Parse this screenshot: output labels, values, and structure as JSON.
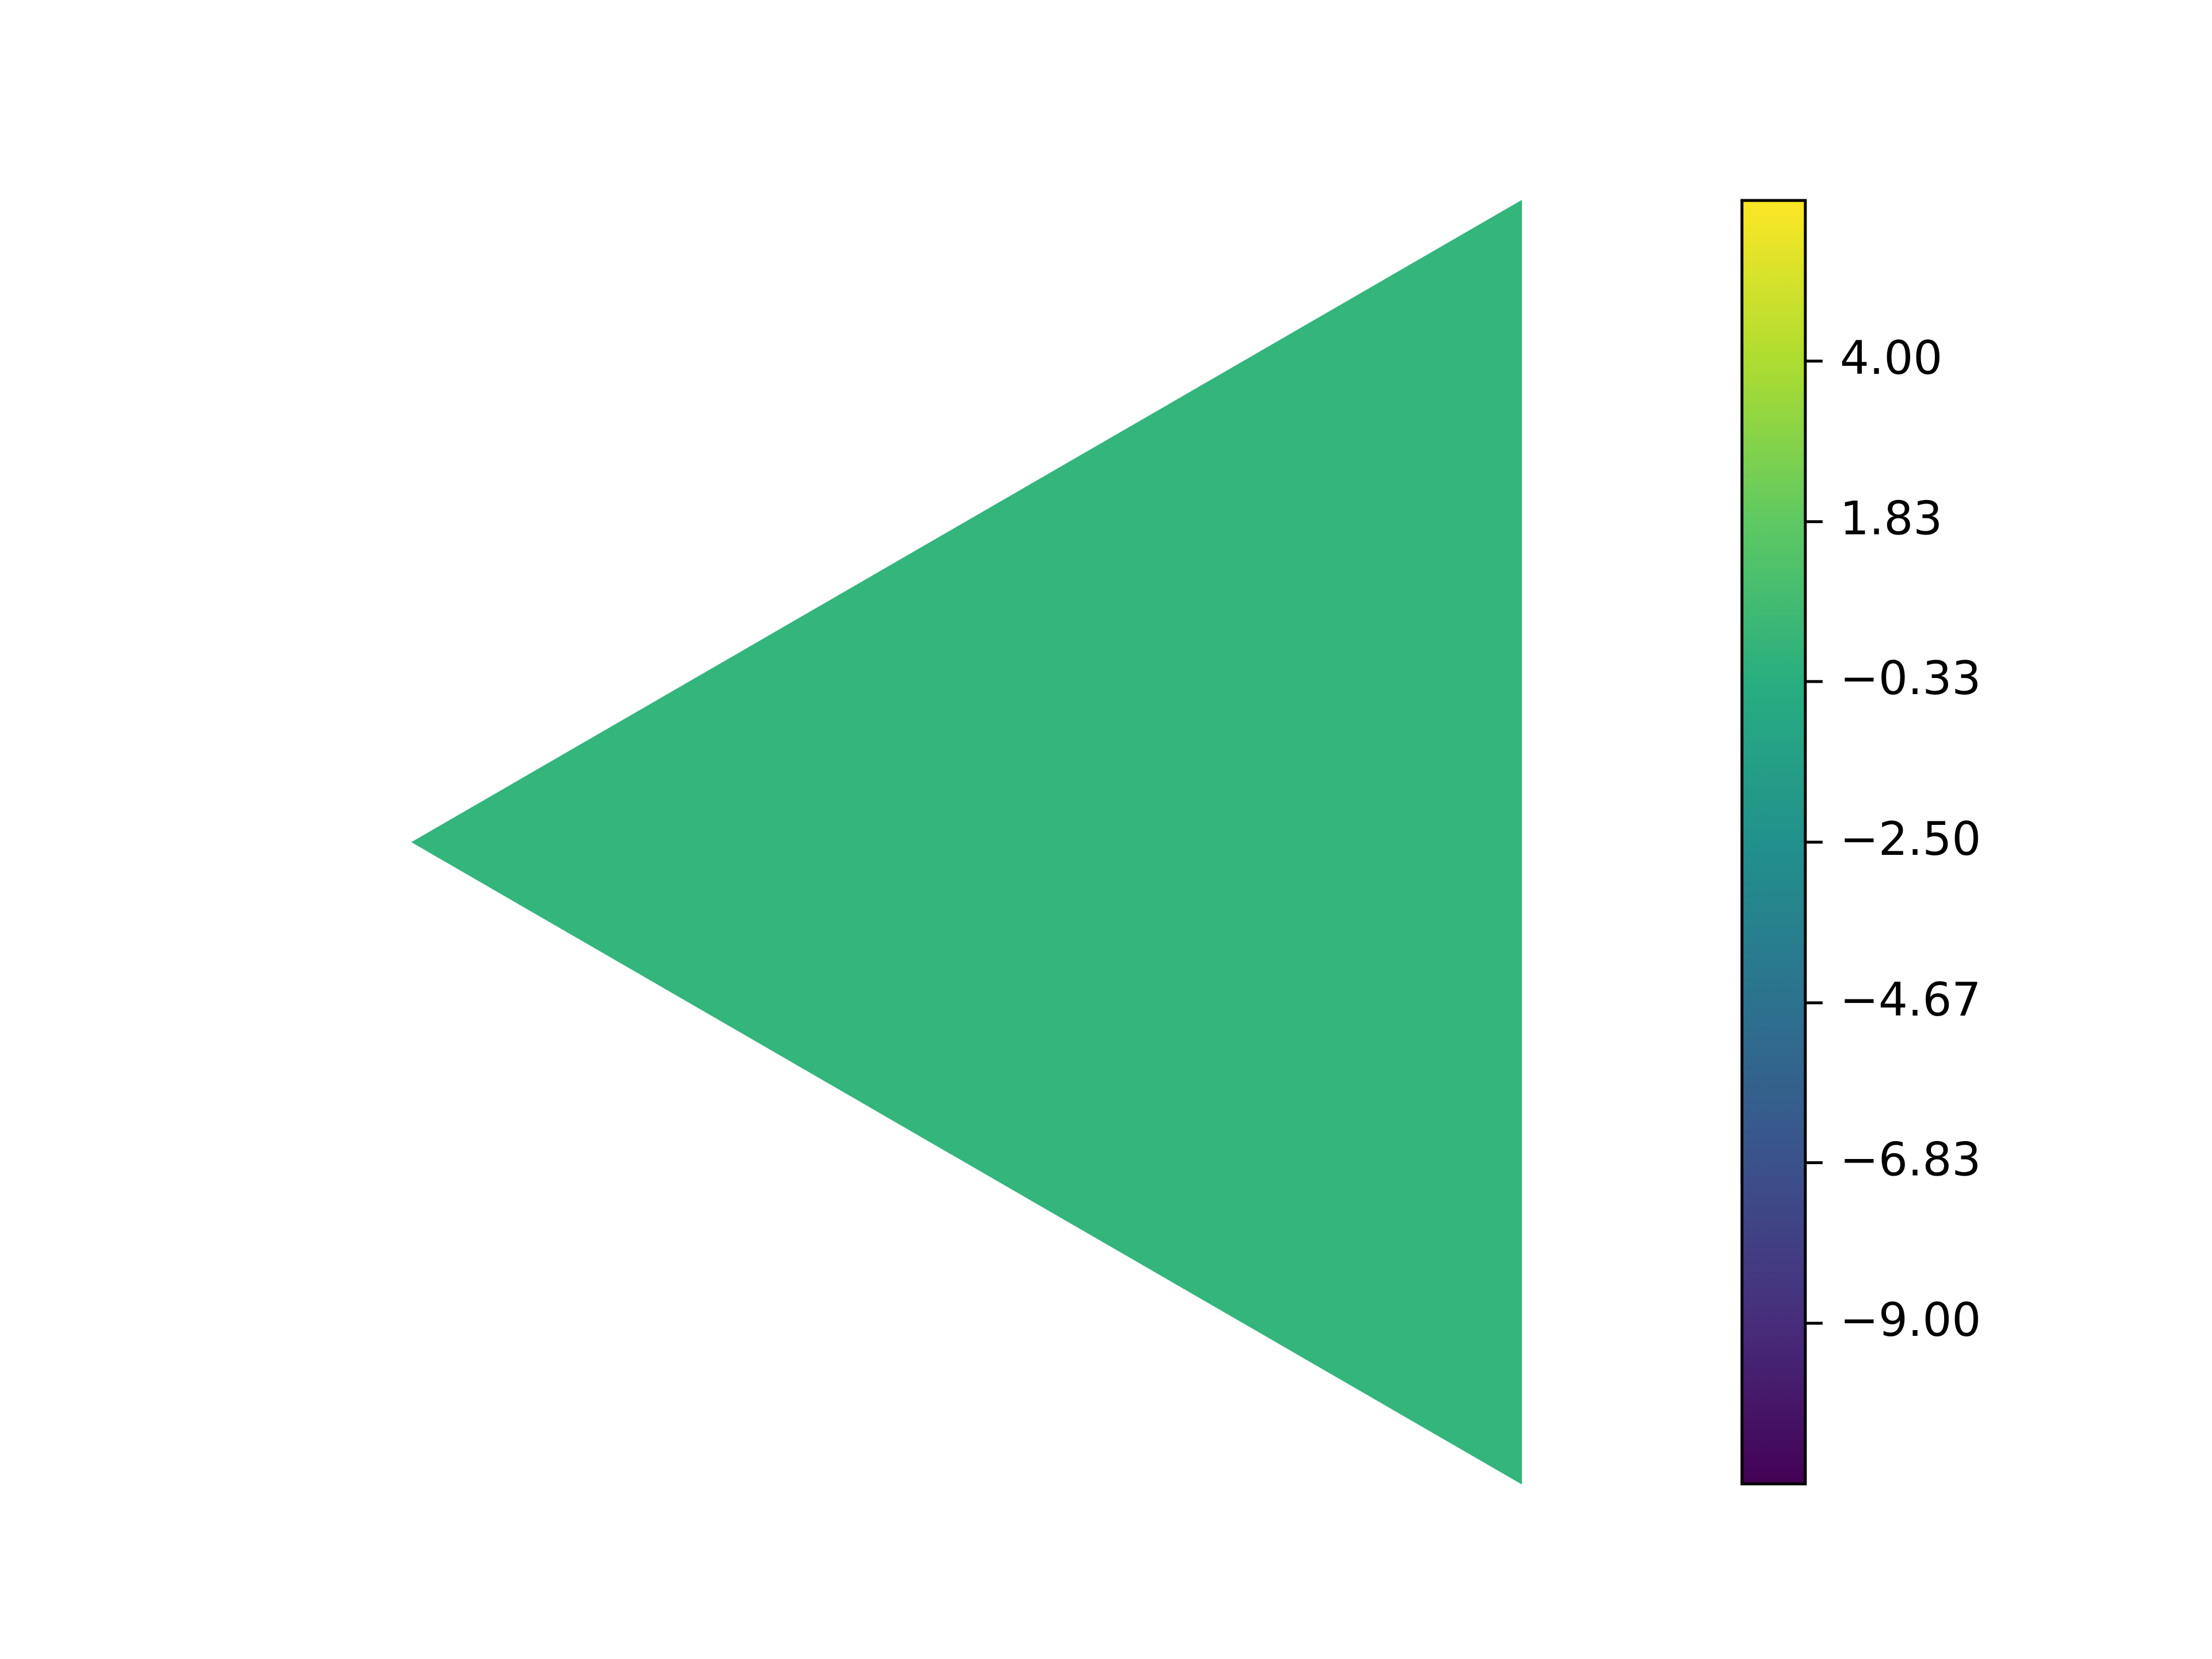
{
  "chart_data": {
    "type": "heatmap",
    "title": "",
    "xlabel": "",
    "ylabel": "",
    "grid": false,
    "axes_visible": false,
    "shape": "triangle",
    "shape_orientation": "pointing-left",
    "fill_value": 0.5,
    "fill_color": "#33b57b",
    "colorbar": {
      "colormap": "viridis",
      "range": [
        -11.17,
        6.17
      ],
      "ticks": [
        4.0,
        1.83,
        -0.33,
        -2.5,
        -4.67,
        -6.83,
        -9.0
      ],
      "tick_labels": [
        "4.00",
        "1.83",
        "−0.33",
        "−2.50",
        "−4.67",
        "−6.83",
        "−9.00"
      ],
      "placement": "right"
    }
  }
}
